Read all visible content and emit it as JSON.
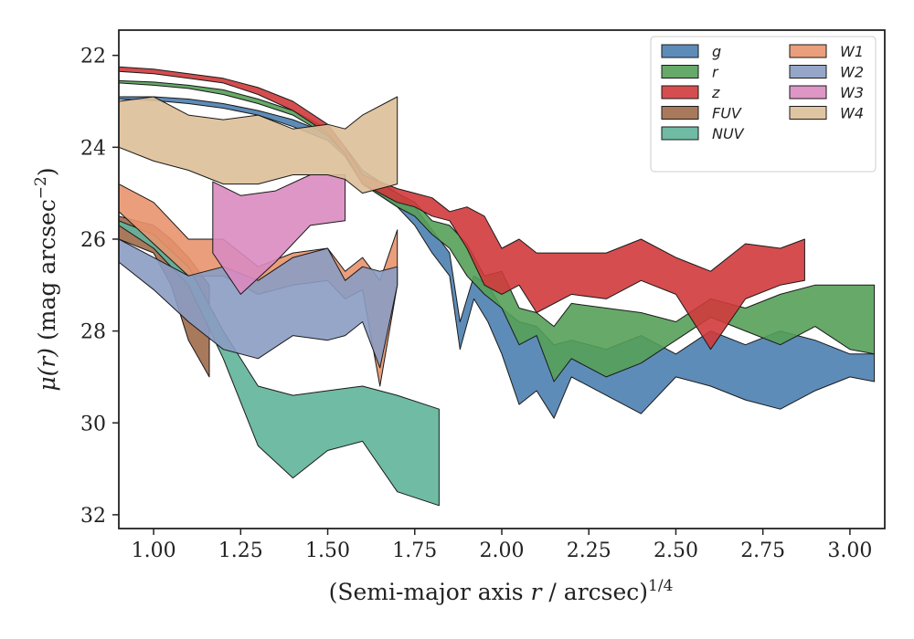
{
  "chart_data": {
    "type": "area",
    "title": "",
    "xlabel": {
      "pre": "(Semi-major axis ",
      "var": "r",
      "post": " / arcsec)",
      "sup": "1/4"
    },
    "ylabel": {
      "var": "μ(r)",
      "pre": " (mag arcsec",
      "sup": "−2",
      "post": ")"
    },
    "xlim": [
      0.9,
      3.1
    ],
    "ylim": [
      32.3,
      21.45
    ],
    "y_inverted": true,
    "grid": false,
    "legend_position": "top-right",
    "xticks": [
      1.0,
      1.25,
      1.5,
      1.75,
      2.0,
      2.25,
      2.5,
      2.75,
      3.0
    ],
    "xtick_labels": [
      "1.00",
      "1.25",
      "1.50",
      "1.75",
      "2.00",
      "2.25",
      "2.50",
      "2.75",
      "3.00"
    ],
    "yticks": [
      22,
      24,
      26,
      28,
      30,
      32
    ],
    "ytick_labels": [
      "22",
      "24",
      "26",
      "28",
      "30",
      "32"
    ],
    "series": [
      {
        "name": "g",
        "color": "#4c7fb0",
        "x": [
          0.9,
          1.0,
          1.1,
          1.2,
          1.3,
          1.4,
          1.5,
          1.55,
          1.6,
          1.7,
          1.75,
          1.8,
          1.85,
          1.88,
          1.92,
          1.96,
          2.0,
          2.05,
          2.1,
          2.15,
          2.2,
          2.3,
          2.4,
          2.5,
          2.6,
          2.7,
          2.8,
          2.9,
          3.0,
          3.07
        ],
        "y_upper": [
          22.9,
          22.9,
          22.95,
          23.05,
          23.2,
          23.4,
          23.7,
          24.0,
          24.5,
          25.0,
          25.3,
          25.8,
          26.3,
          27.8,
          26.8,
          27.0,
          27.5,
          27.8,
          27.9,
          28.3,
          28.2,
          28.4,
          28.1,
          28.5,
          28.0,
          28.3,
          28.0,
          28.2,
          28.5,
          28.5
        ],
        "y_lower": [
          22.95,
          22.98,
          23.05,
          23.15,
          23.3,
          23.55,
          23.85,
          24.2,
          24.8,
          25.3,
          25.7,
          26.3,
          26.8,
          28.4,
          27.3,
          27.8,
          28.5,
          29.6,
          29.3,
          29.9,
          29.0,
          29.4,
          29.8,
          29.0,
          29.2,
          29.5,
          29.7,
          29.3,
          29.0,
          29.1
        ]
      },
      {
        "name": "r",
        "color": "#55a058",
        "x": [
          0.9,
          1.0,
          1.1,
          1.2,
          1.3,
          1.4,
          1.5,
          1.55,
          1.6,
          1.7,
          1.75,
          1.8,
          1.85,
          1.9,
          1.95,
          2.0,
          2.05,
          2.1,
          2.15,
          2.2,
          2.3,
          2.4,
          2.5,
          2.6,
          2.7,
          2.8,
          2.9,
          3.0,
          3.07
        ],
        "y_upper": [
          22.55,
          22.58,
          22.65,
          22.75,
          22.95,
          23.2,
          23.6,
          24.0,
          24.6,
          25.0,
          25.2,
          25.6,
          25.7,
          26.1,
          26.8,
          26.7,
          27.5,
          27.6,
          27.9,
          27.4,
          27.5,
          27.6,
          27.8,
          27.3,
          27.5,
          27.2,
          27.0,
          27.0,
          27.0
        ],
        "y_lower": [
          22.6,
          22.65,
          22.72,
          22.85,
          23.05,
          23.3,
          23.75,
          24.15,
          24.8,
          25.3,
          25.5,
          25.9,
          26.2,
          26.8,
          27.2,
          27.5,
          28.3,
          28.1,
          29.1,
          28.6,
          29.0,
          28.7,
          28.2,
          27.7,
          28.0,
          28.3,
          27.9,
          28.4,
          28.5
        ]
      },
      {
        "name": "z",
        "color": "#d03a3c",
        "x": [
          0.9,
          1.0,
          1.1,
          1.2,
          1.3,
          1.4,
          1.5,
          1.55,
          1.6,
          1.7,
          1.75,
          1.8,
          1.85,
          1.9,
          1.95,
          2.0,
          2.05,
          2.1,
          2.2,
          2.3,
          2.4,
          2.5,
          2.6,
          2.7,
          2.8,
          2.87
        ],
        "y_upper": [
          22.25,
          22.3,
          22.4,
          22.5,
          22.7,
          23.0,
          23.5,
          24.0,
          24.6,
          24.9,
          25.0,
          25.1,
          25.4,
          25.3,
          25.5,
          26.2,
          26.0,
          26.3,
          26.3,
          26.3,
          26.0,
          26.4,
          26.7,
          26.1,
          26.2,
          26.0
        ],
        "y_lower": [
          22.35,
          22.4,
          22.5,
          22.6,
          22.85,
          23.2,
          23.7,
          24.15,
          24.8,
          25.2,
          25.3,
          25.5,
          25.6,
          26.2,
          27.0,
          27.2,
          27.0,
          27.6,
          27.2,
          27.3,
          26.9,
          27.2,
          28.4,
          27.3,
          27.0,
          26.9
        ]
      },
      {
        "name": "FUV",
        "color": "#a06a4a",
        "x": [
          0.9,
          1.0,
          1.05,
          1.1,
          1.16
        ],
        "y_upper": [
          25.5,
          25.7,
          26.0,
          26.4,
          27.0
        ],
        "y_lower": [
          26.0,
          26.3,
          27.0,
          28.2,
          29.0
        ]
      },
      {
        "name": "NUV",
        "color": "#5fb49a",
        "x": [
          0.9,
          1.0,
          1.1,
          1.2,
          1.3,
          1.4,
          1.5,
          1.6,
          1.7,
          1.82
        ],
        "y_upper": [
          25.6,
          25.9,
          26.6,
          28.0,
          29.2,
          29.4,
          29.3,
          29.2,
          29.4,
          29.7
        ],
        "y_lower": [
          25.7,
          26.2,
          27.0,
          28.6,
          30.5,
          31.2,
          30.6,
          30.4,
          31.5,
          31.8
        ]
      },
      {
        "name": "W1",
        "color": "#e8936e",
        "x": [
          0.9,
          1.0,
          1.1,
          1.2,
          1.3,
          1.4,
          1.5,
          1.55,
          1.6,
          1.65,
          1.7
        ],
        "y_upper": [
          24.8,
          25.2,
          26.0,
          26.0,
          26.6,
          26.3,
          26.2,
          26.7,
          26.4,
          26.9,
          25.8
        ],
        "y_lower": [
          25.4,
          26.1,
          26.8,
          26.8,
          27.2,
          27.0,
          26.9,
          27.3,
          27.1,
          29.2,
          27.0
        ]
      },
      {
        "name": "W2",
        "color": "#8b9cc3",
        "x": [
          0.9,
          1.0,
          1.1,
          1.2,
          1.3,
          1.4,
          1.5,
          1.55,
          1.6,
          1.65,
          1.7
        ],
        "y_upper": [
          26.0,
          26.4,
          26.8,
          26.6,
          26.9,
          26.4,
          26.2,
          26.9,
          26.6,
          26.7,
          26.6
        ],
        "y_lower": [
          26.5,
          27.1,
          27.8,
          28.4,
          28.6,
          28.1,
          28.2,
          28.1,
          27.8,
          28.8,
          27.0
        ]
      },
      {
        "name": "W3",
        "color": "#d98bc0",
        "x": [
          1.17,
          1.25,
          1.35,
          1.45,
          1.55
        ],
        "y_upper": [
          24.75,
          25.05,
          24.95,
          24.6,
          24.6
        ],
        "y_lower": [
          26.3,
          27.2,
          26.5,
          25.7,
          25.6
        ]
      },
      {
        "name": "W4",
        "color": "#ddbf98",
        "x": [
          0.9,
          1.0,
          1.1,
          1.2,
          1.3,
          1.4,
          1.5,
          1.55,
          1.6,
          1.7
        ],
        "y_upper": [
          23.0,
          22.9,
          23.3,
          23.4,
          23.3,
          23.6,
          23.5,
          23.6,
          23.3,
          22.9
        ],
        "y_lower": [
          24.0,
          24.3,
          24.5,
          24.8,
          24.8,
          24.6,
          24.6,
          24.7,
          25.0,
          24.8
        ]
      }
    ]
  }
}
